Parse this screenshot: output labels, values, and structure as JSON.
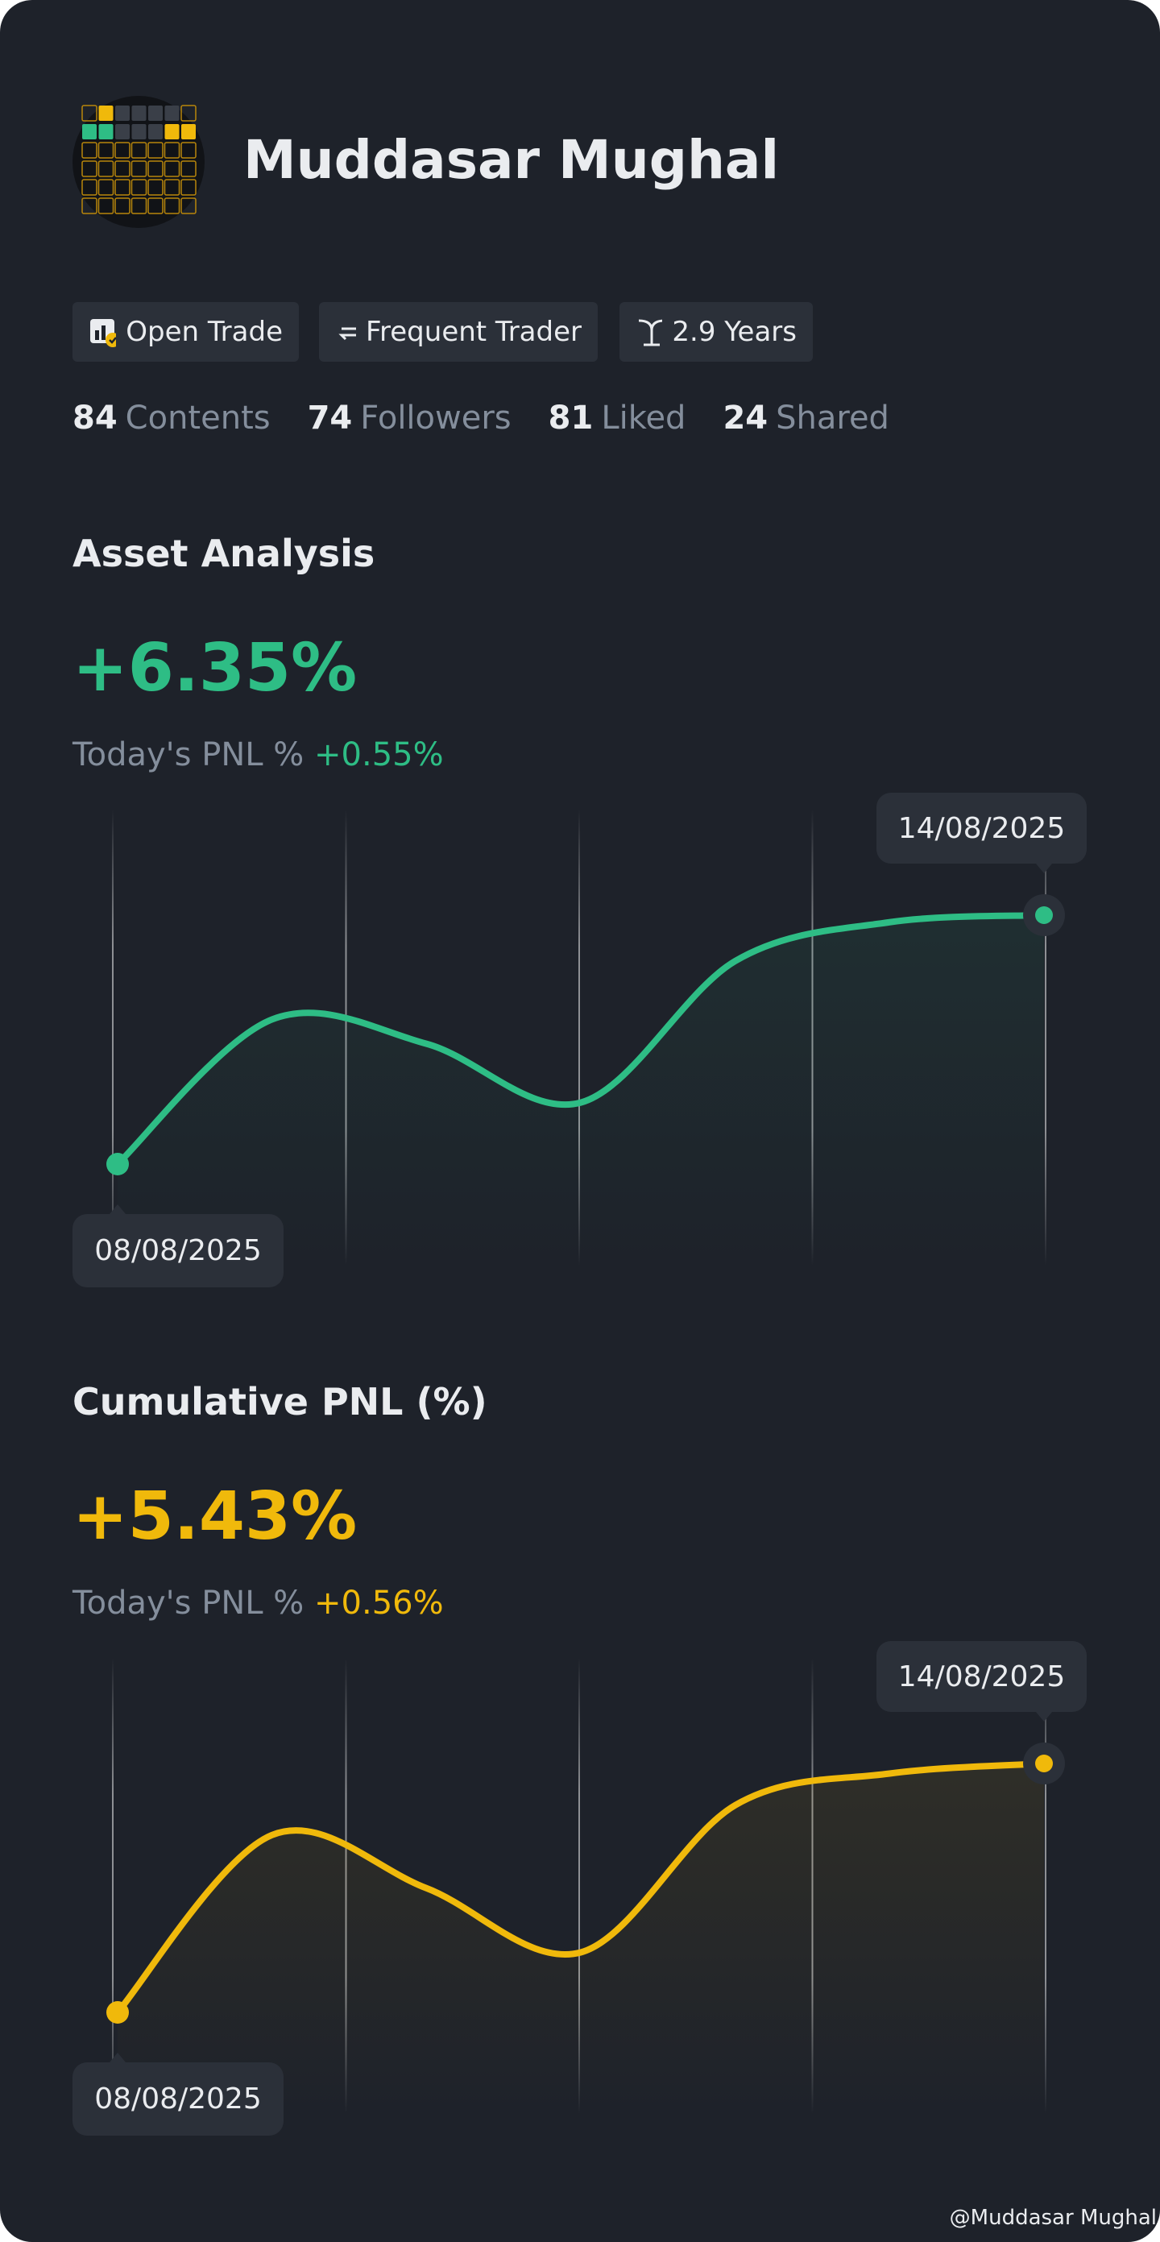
{
  "profile": {
    "name": "Muddasar Mughal",
    "badges": [
      "Open Trade",
      "Frequent Trader",
      "2.9 Years"
    ],
    "stats": [
      {
        "value": 84,
        "label": "Contents"
      },
      {
        "value": 74,
        "label": "Followers"
      },
      {
        "value": 81,
        "label": "Liked"
      },
      {
        "value": 24,
        "label": "Shared"
      }
    ]
  },
  "chart_data": [
    {
      "type": "line",
      "title": "Asset Analysis",
      "headline": "+6.35%",
      "subtitle_label": "Today's PNL %",
      "subtitle_value": "+0.55%",
      "categories": [
        "08/08/2025",
        null,
        null,
        null,
        null,
        null,
        "14/08/2025"
      ],
      "series": [
        {
          "color": "#2ebd85",
          "values": [
            0,
            3.69,
            3.07,
            1.57,
            5.18,
            6.17,
            6.35
          ]
        }
      ]
    },
    {
      "type": "line",
      "title": "Cumulative PNL (%)",
      "headline": "+5.43%",
      "subtitle_label": "Today's PNL %",
      "subtitle_value": "+0.56%",
      "categories": [
        "08/08/2025",
        null,
        null,
        null,
        null,
        null,
        "14/08/2025"
      ],
      "series": [
        {
          "color": "#f0b90b",
          "values": [
            0,
            3.87,
            2.71,
            1.31,
            4.52,
            5.21,
            5.43
          ]
        }
      ]
    }
  ],
  "watermark": "@Muddasar Mughal"
}
